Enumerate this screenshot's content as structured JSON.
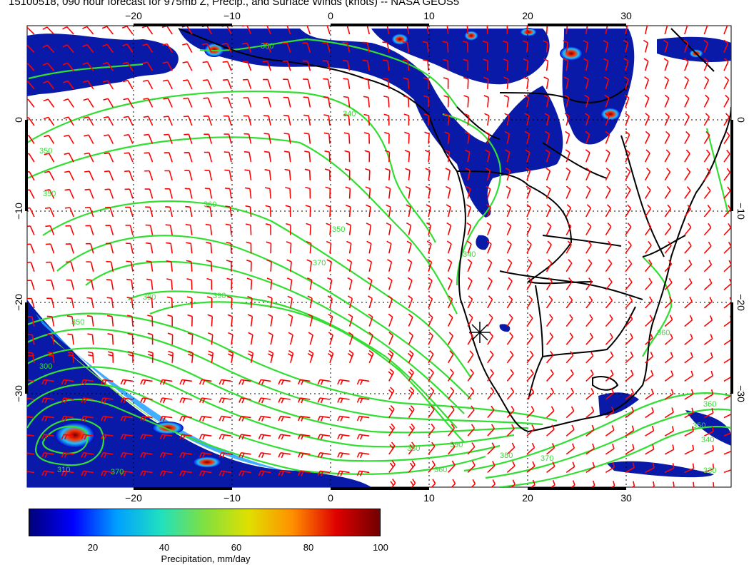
{
  "title": "15100518, 090 hour forecast for 975mb Z, Precip., and Surface Winds (knots) -- NASA GEOS5",
  "axes": {
    "top_lon_ticks": [
      "−20",
      "−10",
      "0",
      "10",
      "20",
      "30"
    ],
    "bottom_lon_ticks": [
      "−20",
      "−10",
      "0",
      "10",
      "20",
      "30"
    ],
    "left_lat_ticks": [
      "0",
      "−10",
      "−20",
      "−30"
    ],
    "right_lat_ticks": [
      "0",
      "−10",
      "−20",
      "−30"
    ]
  },
  "contour_labels": [
    "380",
    "340",
    "350",
    "350",
    "360",
    "350",
    "370",
    "380",
    "390",
    "350",
    "300",
    "310",
    "380",
    "390",
    "380",
    "370",
    "360",
    "340",
    "330",
    "340",
    "350",
    "360",
    "370",
    "360"
  ],
  "colorbar": {
    "ticks": [
      "20",
      "40",
      "60",
      "80",
      "100"
    ],
    "label": "Precipitation, mm/day",
    "colors": [
      "#00007a",
      "#0000ff",
      "#00a0ff",
      "#20e0c0",
      "#80e040",
      "#e0e000",
      "#ff9000",
      "#e00000",
      "#700000"
    ]
  },
  "colors": {
    "wind_barbs": "#ff0000",
    "height_contours": "#33dd33",
    "coastlines": "#000000",
    "grid": "#000000"
  }
}
